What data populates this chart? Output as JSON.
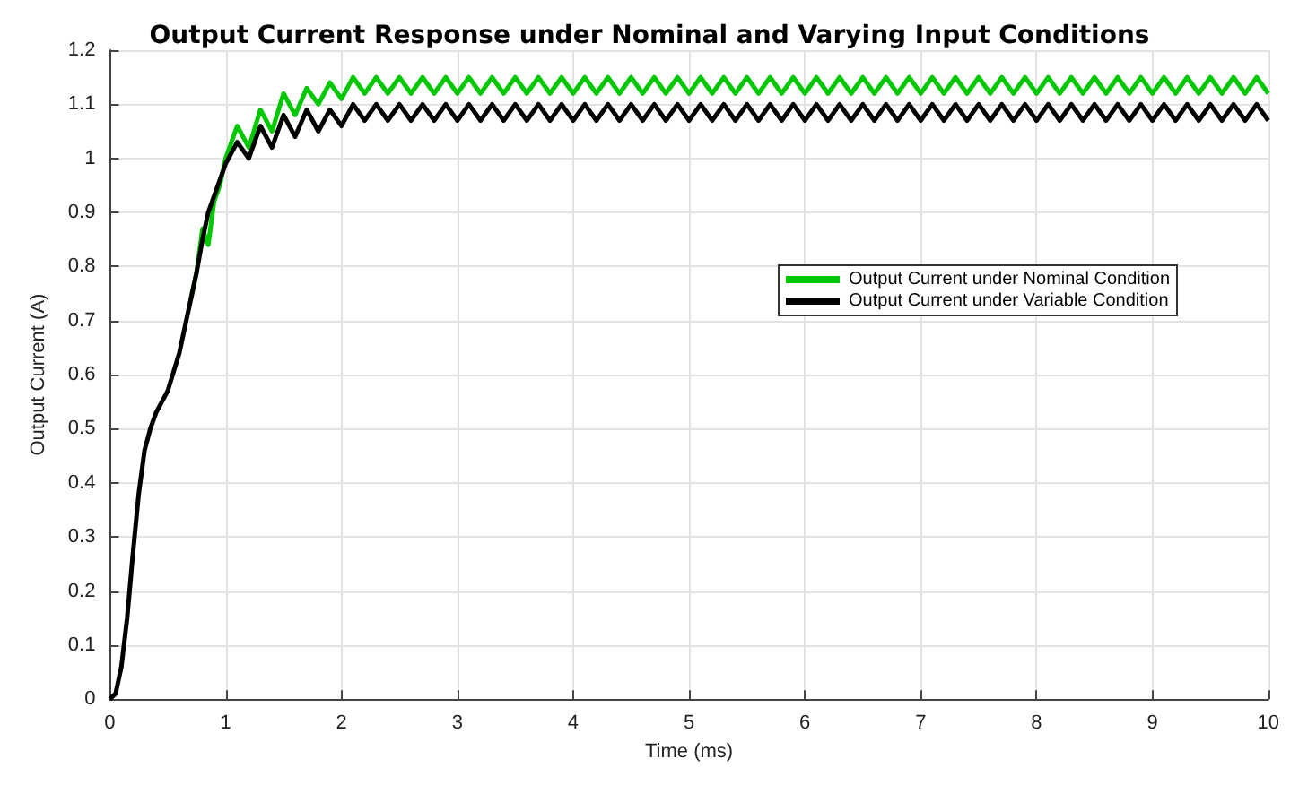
{
  "chart_data": {
    "type": "line",
    "title": "Output Current Response under Nominal and Varying Input Conditions",
    "xlabel": "Time (ms)",
    "ylabel": "Output Current (A)",
    "x": [
      0,
      0.05,
      0.1,
      0.15,
      0.2,
      0.25,
      0.3,
      0.35,
      0.4,
      0.5,
      0.6,
      0.7,
      0.75,
      0.8,
      0.85,
      0.9,
      0.95,
      1.0,
      1.1,
      1.2,
      1.3,
      1.4,
      1.5,
      1.6,
      1.7,
      1.8,
      1.9,
      2.0,
      2.1,
      2.2,
      2.3,
      2.4,
      2.5,
      2.6,
      2.7,
      2.8,
      2.9,
      3.0,
      3.1,
      3.2,
      3.3,
      3.4,
      3.5,
      3.6,
      3.7,
      3.8,
      3.9,
      4.0,
      4.1,
      4.2,
      4.3,
      4.4,
      4.5,
      4.6,
      4.7,
      4.8,
      4.9,
      5.0,
      5.1,
      5.2,
      5.3,
      5.4,
      5.5,
      5.6,
      5.7,
      5.8,
      5.9,
      6.0,
      6.1,
      6.2,
      6.3,
      6.4,
      6.5,
      6.6,
      6.7,
      6.8,
      6.9,
      7.0,
      7.1,
      7.2,
      7.3,
      7.4,
      7.5,
      7.6,
      7.7,
      7.8,
      7.9,
      8.0,
      8.1,
      8.2,
      8.3,
      8.4,
      8.5,
      8.6,
      8.7,
      8.8,
      8.9,
      9.0,
      9.1,
      9.2,
      9.3,
      9.4,
      9.5,
      9.6,
      9.7,
      9.8,
      9.9,
      10.0
    ],
    "series": [
      {
        "name": "Output Current under Nominal Condition",
        "color": "#00c800",
        "values": [
          null,
          null,
          null,
          null,
          null,
          null,
          null,
          null,
          null,
          null,
          null,
          0.74,
          0.79,
          0.87,
          0.84,
          0.92,
          0.95,
          1.0,
          1.06,
          1.02,
          1.09,
          1.05,
          1.12,
          1.08,
          1.13,
          1.1,
          1.14,
          1.11,
          1.15,
          1.12,
          1.15,
          1.12,
          1.15,
          1.12,
          1.15,
          1.12,
          1.15,
          1.12,
          1.15,
          1.12,
          1.15,
          1.12,
          1.15,
          1.12,
          1.15,
          1.12,
          1.15,
          1.12,
          1.15,
          1.12,
          1.15,
          1.12,
          1.15,
          1.12,
          1.15,
          1.12,
          1.15,
          1.12,
          1.15,
          1.12,
          1.15,
          1.12,
          1.15,
          1.12,
          1.15,
          1.12,
          1.15,
          1.12,
          1.15,
          1.12,
          1.15,
          1.12,
          1.15,
          1.12,
          1.15,
          1.12,
          1.15,
          1.12,
          1.15,
          1.12,
          1.15,
          1.12,
          1.15,
          1.12,
          1.15,
          1.12,
          1.15,
          1.12,
          1.15,
          1.12,
          1.15,
          1.12,
          1.15,
          1.12,
          1.15,
          1.12,
          1.15,
          1.12,
          1.15,
          1.12,
          1.15,
          1.12,
          1.15,
          1.12,
          1.15,
          1.12,
          1.15,
          1.12
        ]
      },
      {
        "name": "Output Current under Variable Condition",
        "color": "#000000",
        "values": [
          0,
          0.01,
          0.06,
          0.15,
          0.27,
          0.38,
          0.46,
          0.5,
          0.53,
          0.57,
          0.64,
          0.74,
          0.79,
          0.85,
          0.9,
          0.93,
          0.96,
          0.99,
          1.03,
          1.0,
          1.06,
          1.02,
          1.08,
          1.04,
          1.09,
          1.05,
          1.09,
          1.06,
          1.1,
          1.07,
          1.1,
          1.07,
          1.1,
          1.07,
          1.1,
          1.07,
          1.1,
          1.07,
          1.1,
          1.07,
          1.1,
          1.07,
          1.1,
          1.07,
          1.1,
          1.07,
          1.1,
          1.07,
          1.1,
          1.07,
          1.1,
          1.07,
          1.1,
          1.07,
          1.1,
          1.07,
          1.1,
          1.07,
          1.1,
          1.07,
          1.1,
          1.07,
          1.1,
          1.07,
          1.1,
          1.07,
          1.1,
          1.07,
          1.1,
          1.07,
          1.1,
          1.07,
          1.1,
          1.07,
          1.1,
          1.07,
          1.1,
          1.07,
          1.1,
          1.07,
          1.1,
          1.07,
          1.1,
          1.07,
          1.1,
          1.07,
          1.1,
          1.07,
          1.1,
          1.07,
          1.1,
          1.07,
          1.1,
          1.07,
          1.1,
          1.07,
          1.1,
          1.07,
          1.1,
          1.07,
          1.1,
          1.07,
          1.1,
          1.07,
          1.1,
          1.07,
          1.1,
          1.07
        ]
      }
    ],
    "xlim": [
      0,
      10
    ],
    "xticks": [
      0,
      1,
      2,
      3,
      4,
      5,
      6,
      7,
      8,
      9,
      10
    ],
    "ylim": [
      0,
      1.2
    ],
    "yticks": [
      0,
      0.1,
      0.2,
      0.3,
      0.4,
      0.5,
      0.6,
      0.7,
      0.8,
      0.9,
      1,
      1.1,
      1.2
    ],
    "grid": true,
    "legend": "right",
    "marker": "none",
    "line_style": "solid"
  }
}
